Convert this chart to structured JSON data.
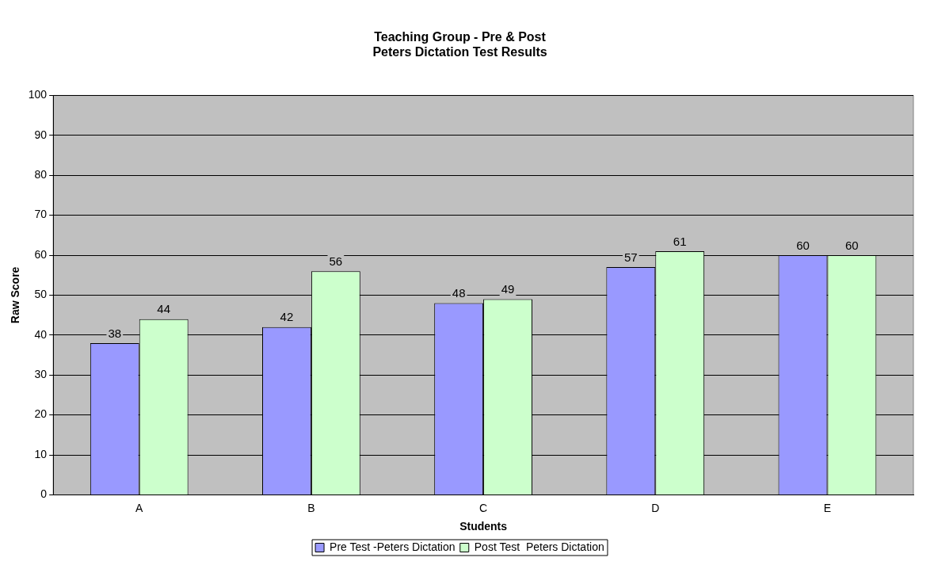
{
  "chart_data": {
    "type": "bar",
    "title": "Teaching Group - Pre & Post\nPeters Dictation Test Results",
    "xlabel": "Students",
    "ylabel": "Raw Score",
    "categories": [
      "A",
      "B",
      "C",
      "D",
      "E"
    ],
    "series": [
      {
        "name": "Pre Test -Peters Dictation",
        "color": "#9999ff",
        "values": [
          38,
          42,
          48,
          57,
          60
        ]
      },
      {
        "name": "Post Test  Peters Dictation",
        "color": "#ccffcc",
        "values": [
          44,
          56,
          49,
          61,
          60
        ]
      }
    ],
    "ylim": [
      0,
      100
    ],
    "yticks": [
      0,
      10,
      20,
      30,
      40,
      50,
      60,
      70,
      80,
      90,
      100
    ],
    "grid": "y",
    "legend": "bottom",
    "data_labels": true
  }
}
